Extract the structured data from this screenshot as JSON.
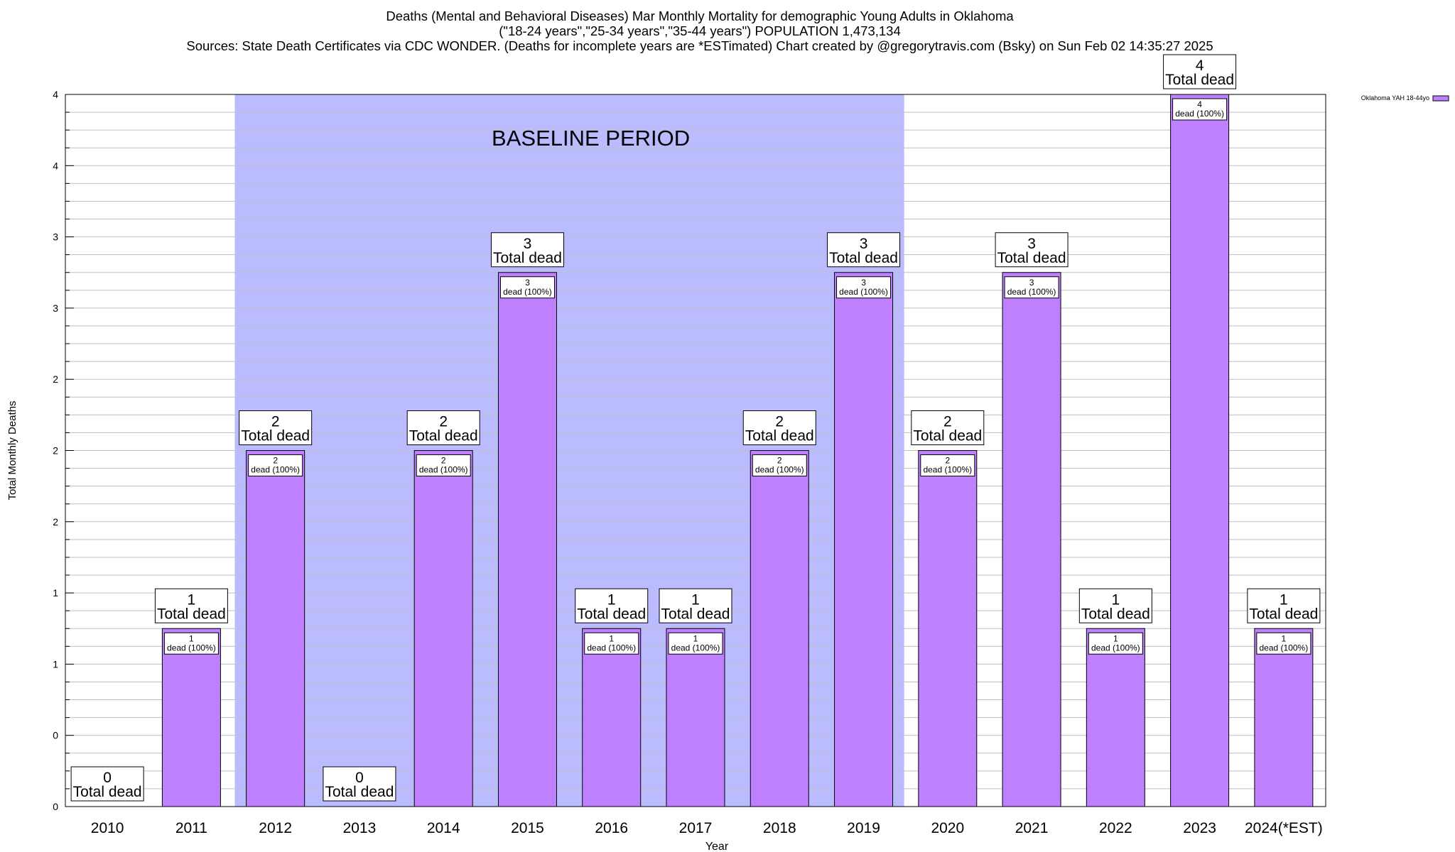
{
  "header": {
    "title_line1": "Deaths (Mental and Behavioral Diseases) Mar Monthly Mortality for demographic Young Adults in Oklahoma",
    "title_line2": "(\"18-24 years\",\"25-34 years\",\"35-44 years\") POPULATION 1,473,134",
    "title_line3": "Sources: State Death Certificates via CDC WONDER. (Deaths for incomplete years are *ESTimated)                Chart created by @gregorytravis.com (Bsky) on Sun Feb 02 14:35:27 2025"
  },
  "chart_data": {
    "type": "bar",
    "xlabel": "Year",
    "ylabel": "Total Monthly Deaths",
    "ylim": [
      0,
      4
    ],
    "ytick_labels": [
      "0",
      "0",
      "1",
      "1",
      "2",
      "2",
      "2",
      "3",
      "3",
      "4",
      "4"
    ],
    "grid": true,
    "legend": {
      "placement": "top-right",
      "entry": "Oklahoma YAH 18-44yo"
    },
    "series_color": "#bf80ff",
    "baseline_color": "#bbbbff",
    "baseline_label": "BASELINE PERIOD",
    "baseline_range": [
      "2012",
      "2019"
    ],
    "categories": [
      "2010",
      "2011",
      "2012",
      "2013",
      "2014",
      "2015",
      "2016",
      "2017",
      "2018",
      "2019",
      "2020",
      "2021",
      "2022",
      "2023",
      "2024(*EST)"
    ],
    "series": [
      {
        "name": "Oklahoma YAH 18-44yo",
        "values": [
          0,
          1,
          2,
          0,
          2,
          3,
          1,
          1,
          2,
          3,
          2,
          3,
          1,
          4,
          1
        ]
      }
    ],
    "total_label_suffix": "Total dead",
    "inner_label_suffix": "dead (100%)"
  }
}
